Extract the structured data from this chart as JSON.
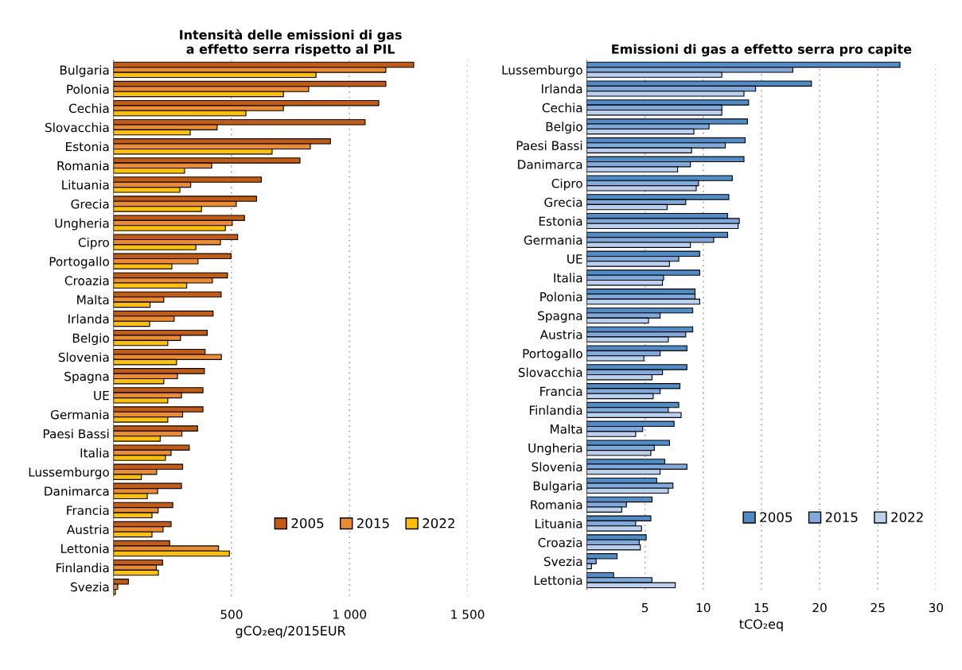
{
  "chart_data": [
    {
      "type": "bar",
      "orientation": "horizontal",
      "title": "Intensità delle emissioni di gas\na effetto serra rispetto al PIL",
      "xlabel": "gCO₂eq/2015EUR",
      "categories": [
        "Bulgaria",
        "Polonia",
        "Cechia",
        "Slovacchia",
        "Estonia",
        "Romania",
        "Lituania",
        "Grecia",
        "Ungheria",
        "Cipro",
        "Portogallo",
        "Croazia",
        "Malta",
        "Irlanda",
        "Belgio",
        "Slovenia",
        "Spagna",
        "UE",
        "Germania",
        "Paesi Bassi",
        "Italia",
        "Lussemburgo",
        "Danimarca",
        "Francia",
        "Austria",
        "Lettonia",
        "Finlandia",
        "Svezia"
      ],
      "series": [
        {
          "name": "2005",
          "color": "#c55a11",
          "values": [
            1272,
            1154,
            1124,
            1066,
            919,
            790,
            626,
            606,
            555,
            526,
            498,
            483,
            456,
            422,
            397,
            388,
            385,
            379,
            379,
            356,
            321,
            293,
            288,
            251,
            244,
            238,
            208,
            63
          ]
        },
        {
          "name": "2015",
          "color": "#ed8b2f",
          "values": [
            1154,
            827,
            720,
            439,
            834,
            416,
            327,
            520,
            503,
            453,
            358,
            419,
            213,
            257,
            284,
            457,
            271,
            288,
            293,
            290,
            244,
            183,
            187,
            189,
            210,
            445,
            181,
            18
          ]
        },
        {
          "name": "2022",
          "color": "#ffc000",
          "values": [
            858,
            720,
            561,
            325,
            672,
            301,
            281,
            373,
            474,
            349,
            247,
            310,
            155,
            153,
            230,
            267,
            213,
            230,
            230,
            198,
            220,
            118,
            143,
            163,
            163,
            491,
            190,
            8
          ]
        }
      ],
      "xlim": [
        0,
        1500
      ],
      "xticks": [
        500,
        {
          "value": 1000,
          "label": "1 000"
        },
        {
          "value": 1500,
          "label": "1 500"
        }
      ],
      "grid": "x",
      "legend": "bottom right"
    },
    {
      "type": "bar",
      "orientation": "horizontal",
      "title": "Emissioni di gas a effetto serra pro capite",
      "xlabel": "tCO₂eq",
      "categories": [
        "Lussemburgo",
        "Irlanda",
        "Cechia",
        "Belgio",
        "Paesi Bassi",
        "Danimarca",
        "Cipro",
        "Grecia",
        "Estonia",
        "Germania",
        "UE",
        "Italia",
        "Polonia",
        "Spagna",
        "Austria",
        "Portogallo",
        "Slovacchia",
        "Francia",
        "Finlandia",
        "Malta",
        "Ungheria",
        "Slovenia",
        "Bulgaria",
        "Romania",
        "Lituania",
        "Croazia",
        "Svezia",
        "Lettonia"
      ],
      "series": [
        {
          "name": "2005",
          "color": "#4f8dc9",
          "values": [
            26.9,
            19.3,
            13.9,
            13.8,
            13.6,
            13.5,
            12.5,
            12.2,
            12.1,
            12.1,
            9.7,
            9.7,
            9.3,
            9.1,
            9.1,
            8.6,
            8.6,
            8.0,
            7.9,
            7.5,
            7.1,
            6.7,
            6.0,
            5.6,
            5.5,
            5.1,
            2.6,
            2.3
          ]
        },
        {
          "name": "2015",
          "color": "#80aadc",
          "values": [
            17.7,
            14.5,
            11.6,
            10.5,
            11.9,
            8.9,
            9.6,
            8.5,
            13.1,
            10.9,
            7.9,
            6.6,
            9.3,
            6.3,
            8.5,
            6.3,
            6.5,
            6.3,
            7.0,
            4.8,
            5.8,
            8.6,
            7.4,
            3.4,
            4.2,
            4.5,
            0.8,
            5.6
          ]
        },
        {
          "name": "2022",
          "color": "#b9d0ee",
          "values": [
            11.6,
            13.5,
            11.6,
            9.2,
            9.0,
            7.8,
            9.4,
            6.9,
            13.0,
            8.9,
            7.1,
            6.5,
            9.7,
            5.3,
            7.0,
            4.9,
            5.6,
            5.7,
            8.1,
            4.2,
            5.5,
            6.3,
            7.0,
            3.0,
            4.7,
            4.6,
            0.4,
            7.6
          ]
        }
      ],
      "xlim": [
        0,
        30
      ],
      "xticks": [
        5,
        10,
        15,
        20,
        25,
        30
      ],
      "grid": "x",
      "legend": "bottom right"
    }
  ]
}
